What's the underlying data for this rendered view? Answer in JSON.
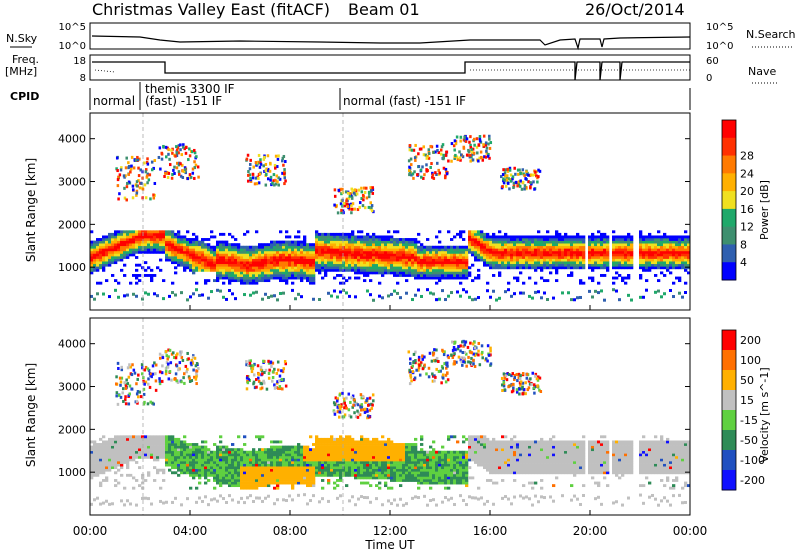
{
  "header": {
    "title": "Christmas Valley East (fitACF)",
    "beam": "Beam 01",
    "date": "26/Oct/2014"
  },
  "time_axis": {
    "label": "Time UT",
    "ticks": [
      "00:00",
      "04:00",
      "08:00",
      "12:00",
      "16:00",
      "20:00",
      "00:00"
    ]
  },
  "nsky_panel": {
    "left_label": "N.Sky",
    "right_label": "N.Search",
    "left_ticks": [
      "10^5",
      "10^0"
    ],
    "right_ticks": [
      "10^5",
      "10^0"
    ]
  },
  "freq_panel": {
    "left_label_1": "Freq.",
    "left_label_2": "[MHz]",
    "right_label": "Nave",
    "left_ticks": [
      "18",
      "8"
    ],
    "right_ticks": [
      "60",
      "0"
    ]
  },
  "cpid": {
    "label": "CPID",
    "segments": [
      {
        "text": "normal"
      },
      {
        "text": "themis 3300 IF"
      },
      {
        "text": "(fast) -151 IF"
      },
      {
        "text": "normal (fast) -151 IF"
      }
    ]
  },
  "chart_data": [
    {
      "type": "heatmap",
      "quantity": "Power",
      "ylabel": "Slant Range [km]",
      "colorbar_label": "Power [dB]",
      "ylim": [
        0,
        4600
      ],
      "y_ticks": [
        "1000",
        "2000",
        "3000",
        "4000"
      ],
      "colorbar_ticks": [
        "4",
        "8",
        "12",
        "16",
        "20",
        "24",
        "28"
      ],
      "colors": [
        "#0000ff",
        "#2f5faf",
        "#3e8f6f",
        "#1fa86a",
        "#f0e020",
        "#ffb000",
        "#ff7a00",
        "#ff3000",
        "#ff0000"
      ]
    },
    {
      "type": "heatmap",
      "quantity": "Velocity",
      "ylabel": "Slant Range [km]",
      "colorbar_label": "Velocity [m s^-1]",
      "ylim": [
        0,
        4600
      ],
      "y_ticks": [
        "1000",
        "2000",
        "3000",
        "4000"
      ],
      "colorbar_ticks": [
        "200",
        "100",
        "50",
        "15",
        "-15",
        "-50",
        "-100",
        "-200"
      ],
      "colors": [
        "#1010ff",
        "#2050c0",
        "#2e8b57",
        "#5fd040",
        "#c0c0c0",
        "#ffb000",
        "#ff7000",
        "#ff0000"
      ]
    }
  ]
}
